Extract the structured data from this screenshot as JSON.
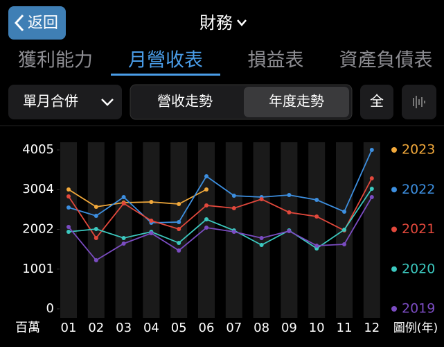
{
  "header": {
    "back": "返回",
    "title": "財務"
  },
  "tabs": {
    "items": [
      "獲利能力",
      "月營收表",
      "損益表",
      "資產負債表"
    ],
    "active": 1
  },
  "controls": {
    "dropdown": "單月合併",
    "toggle": {
      "items": [
        "營收走勢",
        "年度走勢"
      ],
      "active": 1
    },
    "all": "全"
  },
  "chart_data": {
    "type": "line",
    "y_unit": "百萬",
    "legend_title": "圖例(年)",
    "categories": [
      "01",
      "02",
      "03",
      "04",
      "05",
      "06",
      "07",
      "08",
      "09",
      "10",
      "11",
      "12"
    ],
    "ylim": [
      0,
      4005
    ],
    "yticks": [
      0,
      1001,
      2002,
      3004,
      4005
    ],
    "series": [
      {
        "name": "2023",
        "color": "#f2a93b",
        "values": [
          3008,
          2571,
          2676,
          2693,
          2641,
          3008,
          null,
          null,
          null,
          null,
          null,
          null
        ]
      },
      {
        "name": "2022",
        "color": "#3d8fe0",
        "values": [
          2554,
          2344,
          2816,
          2169,
          2186,
          3341,
          2851,
          2816,
          2868,
          2746,
          2449,
          4005
        ]
      },
      {
        "name": "2021",
        "color": "#e2483c",
        "values": [
          2833,
          1784,
          2658,
          2221,
          2011,
          2606,
          2536,
          2763,
          2431,
          2326,
          1976,
          3288
        ]
      },
      {
        "name": "2020",
        "color": "#3cc9c0",
        "values": [
          1941,
          2011,
          1784,
          1941,
          1662,
          2256,
          1976,
          1609,
          1976,
          1522,
          1994,
          3026
        ]
      },
      {
        "name": "2019",
        "color": "#7b4cc2",
        "values": [
          2064,
          1224,
          1644,
          1906,
          1469,
          2046,
          1941,
          1784,
          1959,
          1592,
          1627,
          2816
        ]
      }
    ]
  }
}
